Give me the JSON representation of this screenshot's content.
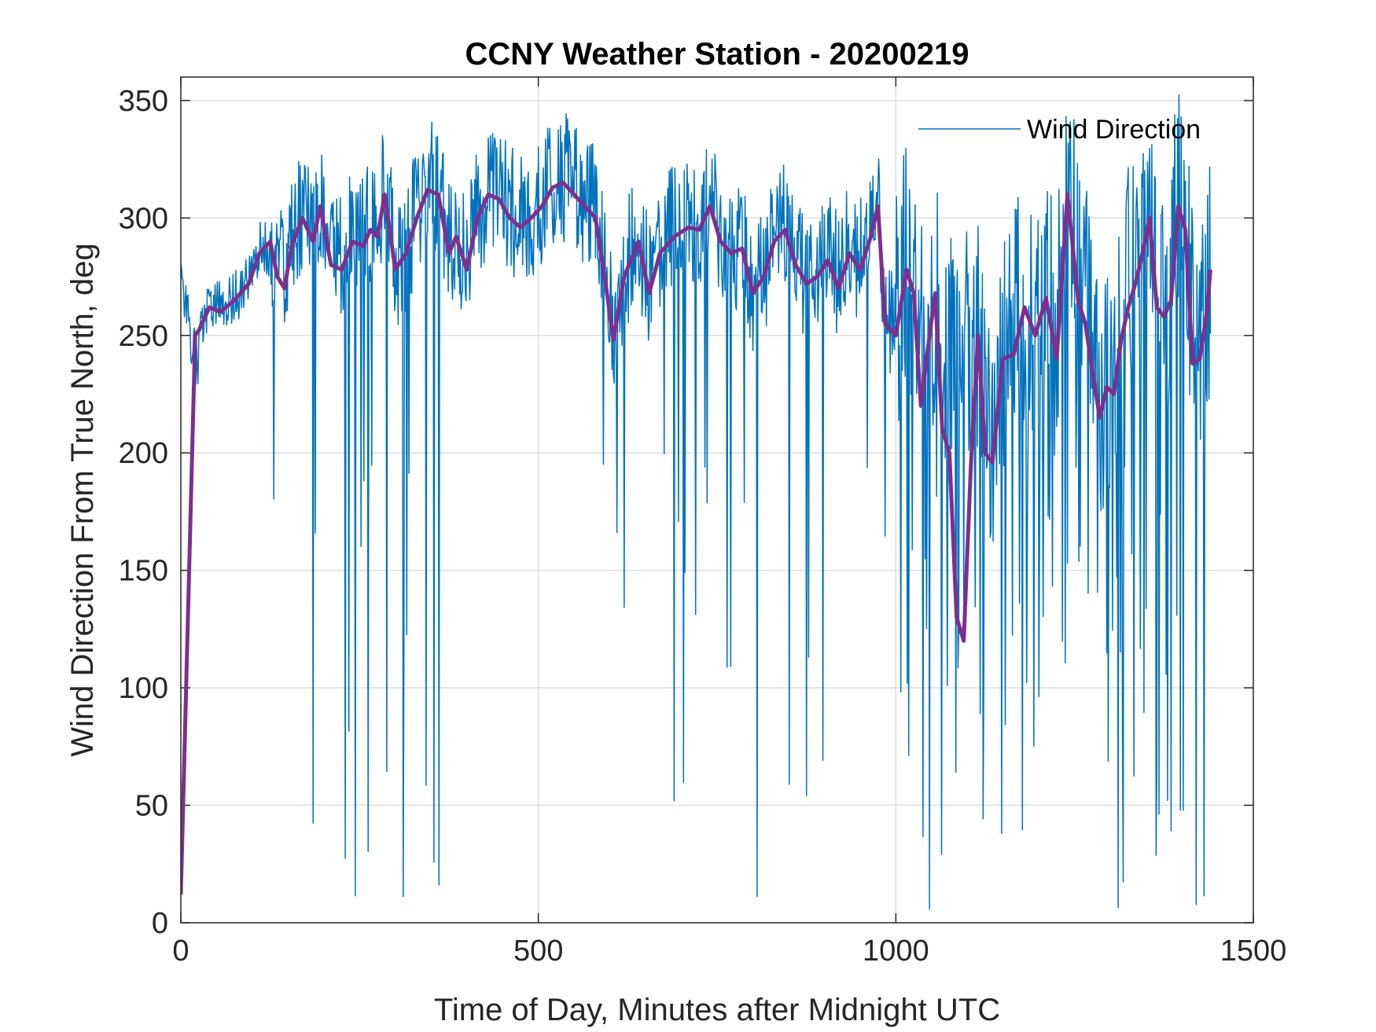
{
  "chart_data": {
    "type": "line",
    "title": "CCNY Weather Station - 20200219",
    "xlabel": "Time of Day, Minutes after Midnight UTC",
    "ylabel": "Wind Direction From True North, deg",
    "xlim": [
      0,
      1500
    ],
    "ylim": [
      0,
      360
    ],
    "xticks": [
      0,
      500,
      1000,
      1500
    ],
    "yticks": [
      0,
      50,
      100,
      150,
      200,
      250,
      300,
      350
    ],
    "grid": true,
    "legend": {
      "location": "top-right",
      "entries": [
        "Wind Direction"
      ]
    },
    "series": [
      {
        "name": "Wind Direction",
        "color": "#0072BD",
        "note": "raw 1-minute samples (approximate reconstruction)",
        "x_start": 0,
        "x_end": 1440,
        "x_step": 1
      },
      {
        "name": "smoothed (unlabeled)",
        "color": "#7E2F8E",
        "x": [
          0,
          20,
          25,
          40,
          55,
          75,
          95,
          110,
          125,
          135,
          145,
          155,
          170,
          185,
          195,
          210,
          225,
          240,
          255,
          265,
          275,
          285,
          300,
          315,
          330,
          345,
          360,
          375,
          385,
          400,
          415,
          430,
          445,
          460,
          475,
          490,
          505,
          520,
          535,
          550,
          565,
          580,
          595,
          605,
          620,
          640,
          655,
          670,
          690,
          710,
          725,
          740,
          755,
          770,
          785,
          800,
          815,
          830,
          845,
          860,
          875,
          890,
          905,
          920,
          935,
          950,
          965,
          975,
          985,
          1000,
          1015,
          1025,
          1035,
          1045,
          1055,
          1065,
          1075,
          1085,
          1095,
          1105,
          1115,
          1125,
          1135,
          1150,
          1165,
          1180,
          1195,
          1210,
          1225,
          1240,
          1255,
          1265,
          1275,
          1285,
          1295,
          1305,
          1315,
          1325,
          1335,
          1345,
          1355,
          1365,
          1375,
          1385,
          1395,
          1405,
          1415,
          1425,
          1435,
          1440
        ],
        "values": [
          12,
          250,
          252,
          262,
          260,
          265,
          272,
          285,
          290,
          275,
          270,
          288,
          300,
          290,
          305,
          280,
          278,
          290,
          288,
          295,
          292,
          310,
          278,
          285,
          300,
          312,
          310,
          285,
          292,
          278,
          300,
          310,
          308,
          300,
          296,
          300,
          305,
          313,
          315,
          310,
          305,
          300,
          270,
          248,
          275,
          290,
          268,
          285,
          292,
          296,
          295,
          305,
          290,
          285,
          287,
          268,
          275,
          290,
          295,
          280,
          272,
          275,
          282,
          270,
          285,
          278,
          292,
          305,
          255,
          250,
          278,
          268,
          220,
          245,
          268,
          210,
          200,
          130,
          120,
          195,
          250,
          200,
          196,
          240,
          242,
          262,
          250,
          266,
          240,
          310,
          265,
          255,
          235,
          215,
          228,
          225,
          248,
          262,
          272,
          285,
          300,
          262,
          258,
          265,
          305,
          295,
          238,
          240,
          260,
          278
        ]
      }
    ]
  }
}
